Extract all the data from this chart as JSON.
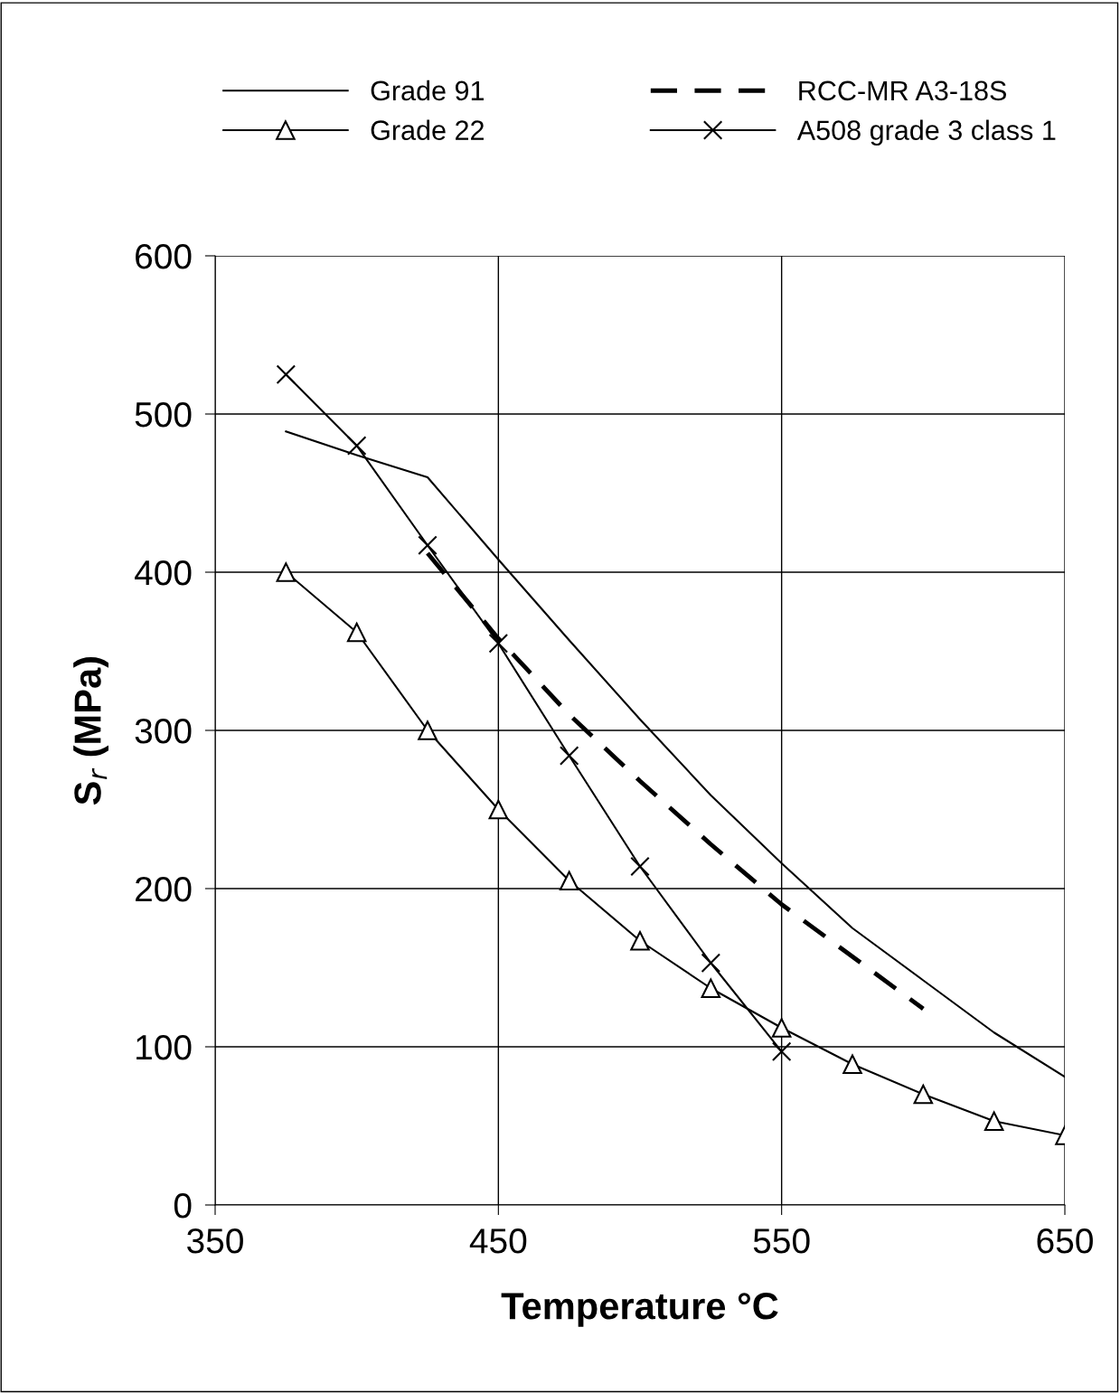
{
  "chart_data": {
    "type": "line",
    "xlabel": "Temperature °C",
    "ylabel": "S$_{r}$ (MPa)",
    "xlim": [
      350,
      650
    ],
    "xticks": [
      350,
      450,
      550,
      650
    ],
    "ylim": [
      0,
      600
    ],
    "yticks": [
      0,
      100,
      200,
      300,
      400,
      500,
      600
    ],
    "grid": true,
    "legend": "top",
    "series": [
      {
        "name": "Grade 91",
        "color": "#000000",
        "marker": "none",
        "line_style": "solid",
        "x": [
          375,
          400,
          425,
          450,
          475,
          500,
          525,
          550,
          575,
          600,
          625,
          650
        ],
        "values": [
          489,
          474,
          460,
          408,
          357,
          307,
          259,
          216,
          175,
          142,
          109,
          81
        ]
      },
      {
        "name": "Grade 22",
        "color": "#000000",
        "marker": "triangle",
        "line_style": "solid",
        "x": [
          375,
          400,
          425,
          450,
          475,
          500,
          525,
          550,
          575,
          600,
          625,
          650
        ],
        "values": [
          400,
          362,
          300,
          250,
          205,
          167,
          137,
          112,
          89,
          70,
          53,
          44
        ]
      },
      {
        "name": "RCC-MR A3-18S",
        "color": "#000000",
        "marker": "none",
        "line_style": "dashed",
        "x": [
          425,
          450,
          475,
          500,
          525,
          550,
          575,
          600
        ],
        "values": [
          412,
          358,
          310,
          268,
          228,
          190,
          157,
          124
        ]
      },
      {
        "name": "A508 grade 3 class 1",
        "color": "#000000",
        "marker": "cross",
        "line_style": "solid",
        "x": [
          375,
          400,
          425,
          450,
          475,
          500,
          525,
          550
        ],
        "values": [
          525,
          480,
          417,
          355,
          284,
          214,
          153,
          97
        ]
      }
    ]
  }
}
